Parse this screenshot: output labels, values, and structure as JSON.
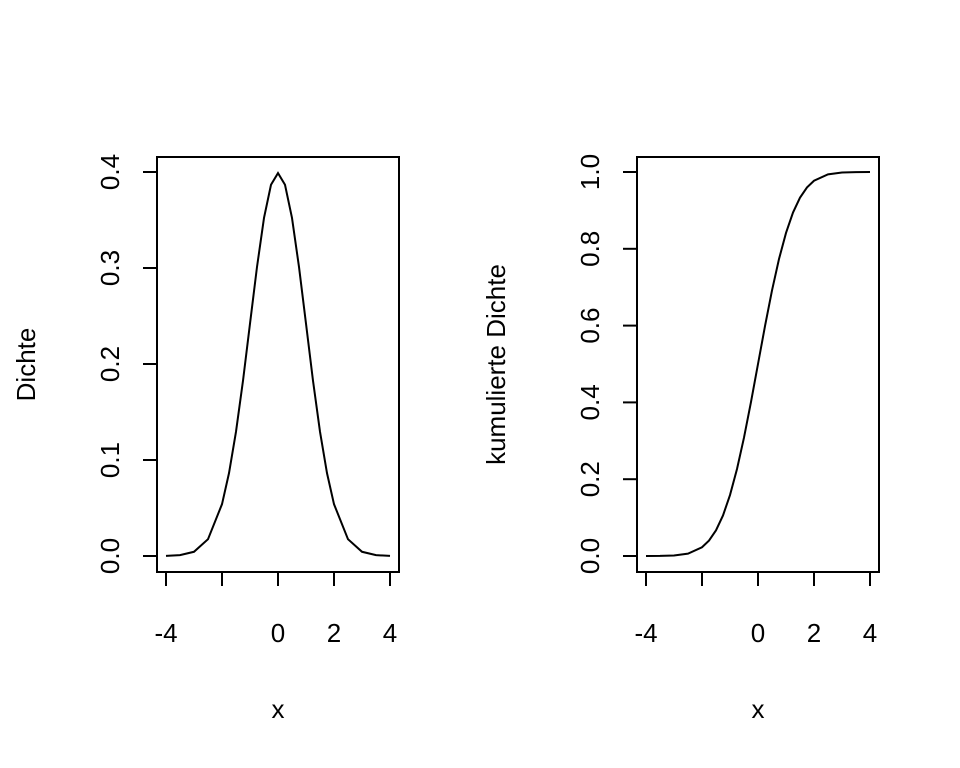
{
  "chart_data": [
    {
      "type": "line",
      "title": "",
      "xlabel": "x",
      "ylabel": "Dichte",
      "xlim": [
        -4,
        4
      ],
      "ylim": [
        0,
        0.4
      ],
      "x_ticks": [
        -4,
        -2,
        0,
        2,
        4
      ],
      "x_tick_labels": [
        "-4",
        "",
        "0",
        "2",
        "4"
      ],
      "y_ticks": [
        0,
        0.1,
        0.2,
        0.3,
        0.4
      ],
      "y_tick_labels": [
        "0.0",
        "0.1",
        "0.2",
        "0.3",
        "0.4"
      ],
      "grid": false,
      "series": [
        {
          "x": [
            -4,
            -3.5,
            -3,
            -2.5,
            -2,
            -1.75,
            -1.5,
            -1.25,
            -1,
            -0.75,
            -0.5,
            -0.25,
            0,
            0.25,
            0.5,
            0.75,
            1,
            1.25,
            1.5,
            1.75,
            2,
            2.5,
            3,
            3.5,
            4
          ],
          "values": [
            0.0001,
            0.0009,
            0.0044,
            0.0175,
            0.054,
            0.0863,
            0.1295,
            0.1826,
            0.242,
            0.3011,
            0.3521,
            0.3867,
            0.3989,
            0.3867,
            0.3521,
            0.3011,
            0.242,
            0.1826,
            0.1295,
            0.0863,
            0.054,
            0.0175,
            0.0044,
            0.0009,
            0.0001
          ]
        }
      ]
    },
    {
      "type": "line",
      "title": "",
      "xlabel": "x",
      "ylabel": "kumulierte Dichte",
      "xlim": [
        -4,
        4
      ],
      "ylim": [
        0,
        1
      ],
      "x_ticks": [
        -4,
        -2,
        0,
        2,
        4
      ],
      "x_tick_labels": [
        "-4",
        "",
        "0",
        "2",
        "4"
      ],
      "y_ticks": [
        0,
        0.2,
        0.4,
        0.6,
        0.8,
        1.0
      ],
      "y_tick_labels": [
        "0.0",
        "0.2",
        "0.4",
        "0.6",
        "0.8",
        "1.0"
      ],
      "grid": false,
      "series": [
        {
          "x": [
            -4,
            -3.5,
            -3,
            -2.5,
            -2,
            -1.75,
            -1.5,
            -1.25,
            -1,
            -0.75,
            -0.5,
            -0.25,
            0,
            0.25,
            0.5,
            0.75,
            1,
            1.25,
            1.5,
            1.75,
            2,
            2.5,
            3,
            3.5,
            4
          ],
          "values": [
            0.0,
            0.0002,
            0.0013,
            0.0062,
            0.0228,
            0.0401,
            0.0668,
            0.1056,
            0.1587,
            0.2266,
            0.3085,
            0.4013,
            0.5,
            0.5987,
            0.6915,
            0.7734,
            0.8413,
            0.8944,
            0.9332,
            0.9599,
            0.9772,
            0.9938,
            0.9987,
            0.9998,
            1.0
          ]
        }
      ]
    }
  ]
}
